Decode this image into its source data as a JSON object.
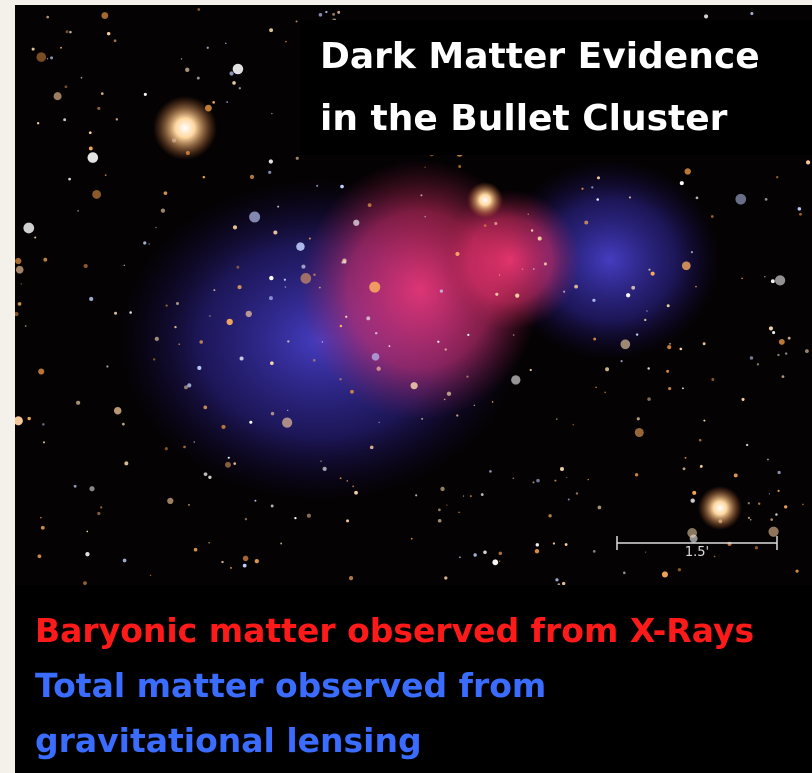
{
  "title": {
    "lines": [
      "Dark Matter Evidence",
      "in the Bullet Cluster"
    ]
  },
  "scale_bar": {
    "label": "1.5'"
  },
  "caption": {
    "baryonic": "Baryonic matter observed from X-Rays",
    "total_lines": [
      "Total matter observed from",
      "gravitational lensing"
    ]
  }
}
